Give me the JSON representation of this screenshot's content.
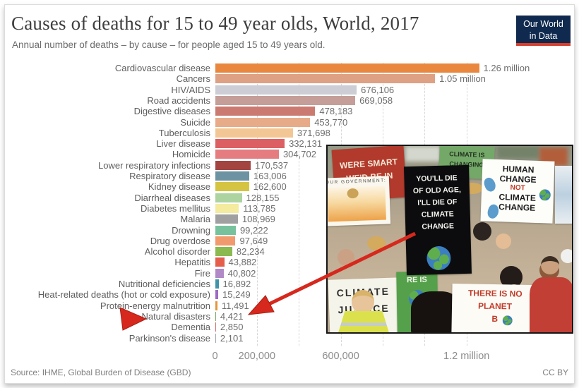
{
  "header": {
    "title": "Causes of deaths for 15 to 49 year olds, World, 2017",
    "subtitle": "Annual number of deaths – by cause – for people aged 15 to 49 years old.",
    "logo": {
      "line1": "Our World",
      "line2": "in Data",
      "bg_color": "#10294e",
      "accent_color": "#d63f2d"
    }
  },
  "chart_data": {
    "type": "bar",
    "orientation": "horizontal",
    "title": "Causes of deaths for 15 to 49 year olds, World, 2017",
    "xlabel": "Annual number of deaths",
    "xlim": [
      0,
      1260000
    ],
    "grid": "dashed-vertical",
    "legend": "none",
    "categories": [
      "Cardiovascular disease",
      "Cancers",
      "HIV/AIDS",
      "Road accidents",
      "Digestive diseases",
      "Suicide",
      "Tuberculosis",
      "Liver disease",
      "Homicide",
      "Lower respiratory infections",
      "Respiratory disease",
      "Kidney disease",
      "Diarrheal diseases",
      "Diabetes mellitus",
      "Malaria",
      "Drowning",
      "Drug overdose",
      "Alcohol disorder",
      "Hepatitis",
      "Fire",
      "Nutritional deficiencies",
      "Heat-related deaths (hot or cold exposure)",
      "Protein-energy malnutrition",
      "Natural disasters",
      "Dementia",
      "Parkinson's disease"
    ],
    "values": [
      1260000,
      1050000,
      676106,
      669058,
      478183,
      453770,
      371698,
      332131,
      304702,
      170537,
      163006,
      162600,
      128155,
      113785,
      108969,
      99222,
      97649,
      82234,
      43882,
      40802,
      16892,
      15249,
      11491,
      4421,
      2850,
      2101
    ],
    "value_labels": [
      "1.26 million",
      "1.05 million",
      "676,106",
      "669,058",
      "478,183",
      "453,770",
      "371,698",
      "332,131",
      "304,702",
      "170,537",
      "163,006",
      "162,600",
      "128,155",
      "113,785",
      "108,969",
      "99,222",
      "97,649",
      "82,234",
      "43,882",
      "40,802",
      "16,892",
      "15,249",
      "11,491",
      "4,421",
      "2,850",
      "2,101"
    ],
    "bar_colors": [
      "#e8873d",
      "#dfa183",
      "#cccdd5",
      "#c59e99",
      "#ca7a71",
      "#e7ab8a",
      "#f3c795",
      "#dc5f63",
      "#e57c80",
      "#a34441",
      "#6d92a1",
      "#d5c441",
      "#add3a1",
      "#f4eb9f",
      "#a0a0a0",
      "#77c29d",
      "#f09a6e",
      "#8bba51",
      "#e55d4b",
      "#b289c7",
      "#4093a9",
      "#9c6ac4",
      "#e2973c",
      "#76a865",
      "#c96f6f",
      "#9aa5b5"
    ],
    "x_ticks": [
      {
        "label": "0",
        "value": 0
      },
      {
        "label": "200,000",
        "value": 200000
      },
      {
        "label": "600,000",
        "value": 600000
      },
      {
        "label": "1.2 million",
        "value": 1200000
      }
    ],
    "gridline_values": [
      200000,
      400000,
      600000,
      800000,
      1000000,
      1200000
    ]
  },
  "annotation": {
    "color": "#d6281d",
    "pointed_category": "Natural disasters",
    "pointed_value": "4,421"
  },
  "photo": {
    "description": "Climate protest crowd photo overlaid on chart",
    "signs": {
      "red_sign": [
        "WERE SMART",
        "WE'D BE IN"
      ],
      "government_sign": "OUR GOVERNMENT:",
      "green_sign": [
        "CLIMATE IS",
        "CHANGING"
      ],
      "black_sign": [
        "YOU'LL DIE",
        "OF OLD AGE,",
        "I'LL DIE OF",
        "CLIMATE",
        "CHANGE"
      ],
      "human_change_sign": [
        "HUMAN",
        "CHANGE",
        "NOT",
        "CLIMATE",
        "CHANGE"
      ],
      "climate_justice_sign": [
        "CLIMATE",
        "JUSTICE"
      ],
      "planet_b_sign": [
        "THERE IS NO",
        "PLANET",
        "B"
      ],
      "green_earth_sign": "RE IS"
    }
  },
  "footer": {
    "source": "Source: IHME, Global Burden of Disease (GBD)",
    "license": "CC BY"
  }
}
